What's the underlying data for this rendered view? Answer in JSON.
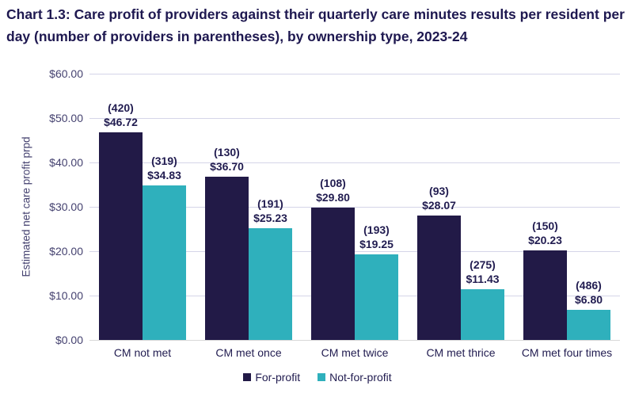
{
  "title": "Chart 1.3: Care profit of providers against their quarterly care minutes results per resident per day (number of providers in parentheses), by ownership type, 2023-24",
  "chart_data": {
    "type": "bar",
    "title": "Chart 1.3: Care profit of providers against their quarterly care minutes results per resident per day (number of providers in parentheses), by ownership type, 2023-24",
    "xlabel": "",
    "ylabel": "Estimated net care profit prpd",
    "ylim": [
      0,
      60
    ],
    "ytick_step": 10,
    "ytick_labels": [
      "$0.00",
      "$10.00",
      "$20.00",
      "$30.00",
      "$40.00",
      "$50.00",
      "$60.00"
    ],
    "grid": true,
    "legend_position": "bottom",
    "categories": [
      "CM not met",
      "CM met once",
      "CM met twice",
      "CM met thrice",
      "CM met four times"
    ],
    "series": [
      {
        "name": "For-profit",
        "color": "#221a47",
        "values": [
          46.72,
          36.7,
          29.8,
          28.07,
          20.23
        ],
        "counts": [
          420,
          130,
          108,
          93,
          150
        ],
        "count_labels": [
          "(420)",
          "(130)",
          "(108)",
          "(93)",
          "(150)"
        ],
        "value_labels": [
          "$46.72",
          "$36.70",
          "$29.80",
          "$28.07",
          "$20.23"
        ]
      },
      {
        "name": "Not-for-profit",
        "color": "#2fb0bc",
        "values": [
          34.83,
          25.23,
          19.25,
          11.43,
          6.8
        ],
        "counts": [
          319,
          191,
          193,
          275,
          486
        ],
        "count_labels": [
          "(319)",
          "(191)",
          "(193)",
          "(275)",
          "(486)"
        ],
        "value_labels": [
          "$34.83",
          "$25.23",
          "$19.25",
          "$11.43",
          "$6.80"
        ]
      }
    ],
    "colors": {
      "title_text": "#1e1850",
      "label_text": "#211c50",
      "tick_text": "#454270",
      "gridline": "#d5d5e8",
      "axis_line": "#d9d9d9"
    }
  }
}
